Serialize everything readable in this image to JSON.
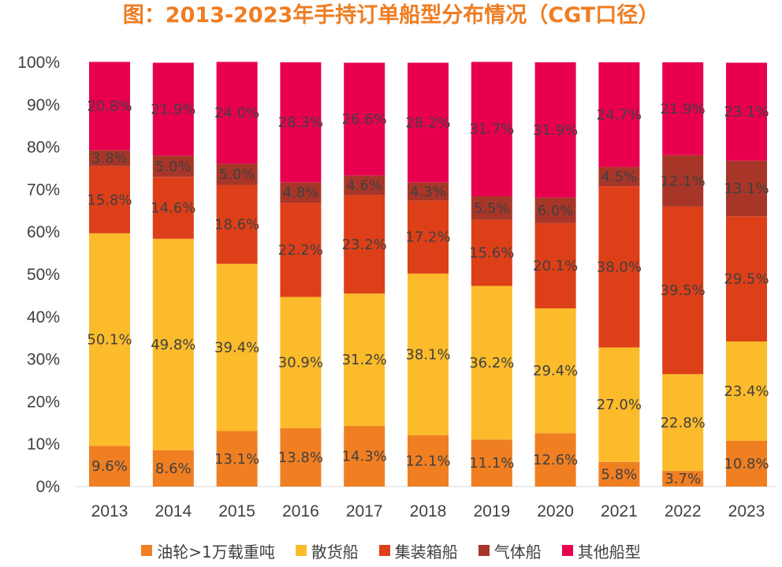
{
  "chart_data": {
    "type": "bar",
    "stacked": true,
    "title": "图：2013-2023年手持订单船型分布情况（CGT口径）",
    "categories": [
      "2013",
      "2014",
      "2015",
      "2016",
      "2017",
      "2018",
      "2019",
      "2020",
      "2021",
      "2022",
      "2023"
    ],
    "y_ticks": [
      "0%",
      "10%",
      "20%",
      "30%",
      "40%",
      "50%",
      "60%",
      "70%",
      "80%",
      "90%",
      "100%"
    ],
    "ylim": [
      0,
      100
    ],
    "grid": false,
    "legend_position": "bottom",
    "series": [
      {
        "name": "油轮>1万载重吨",
        "color": "#f07f22",
        "values": [
          9.6,
          8.6,
          13.1,
          13.8,
          14.3,
          12.1,
          11.1,
          12.6,
          5.8,
          3.7,
          10.8
        ],
        "labels": [
          "9.6%",
          "8.6%",
          "13.1%",
          "13.8%",
          "14.3%",
          "12.1%",
          "11.1%",
          "12.6%",
          "5.8%",
          "3.7%",
          "10.8%"
        ]
      },
      {
        "name": "散货船",
        "color": "#fbbb2b",
        "values": [
          50.1,
          49.8,
          39.4,
          30.9,
          31.2,
          38.1,
          36.2,
          29.4,
          27.0,
          22.8,
          23.4
        ],
        "labels": [
          "50.1%",
          "49.8%",
          "39.4%",
          "30.9%",
          "31.2%",
          "38.1%",
          "36.2%",
          "29.4%",
          "27.0%",
          "22.8%",
          "23.4%"
        ]
      },
      {
        "name": "集装箱船",
        "color": "#dd3f19",
        "values": [
          15.8,
          14.6,
          18.6,
          22.2,
          23.2,
          17.2,
          15.6,
          20.1,
          38.0,
          39.5,
          29.5
        ],
        "labels": [
          "15.8%",
          "14.6%",
          "18.6%",
          "22.2%",
          "23.2%",
          "17.2%",
          "15.6%",
          "20.1%",
          "38.0%",
          "39.5%",
          "29.5%"
        ]
      },
      {
        "name": "气体船",
        "color": "#a83628",
        "values": [
          3.8,
          5.0,
          5.0,
          4.8,
          4.6,
          4.3,
          5.5,
          6.0,
          4.5,
          12.1,
          13.1
        ],
        "labels": [
          "3.8%",
          "5.0%",
          "5.0%",
          "4.8%",
          "4.6%",
          "4.3%",
          "5.5%",
          "6.0%",
          "4.5%",
          "12.1%",
          "13.1%"
        ]
      },
      {
        "name": "其他船型",
        "color": "#e8004f",
        "values": [
          20.8,
          21.9,
          24.0,
          28.3,
          26.6,
          28.2,
          31.7,
          31.9,
          24.7,
          21.9,
          23.1
        ],
        "labels": [
          "20.8%",
          "21.9%",
          "24.0%",
          "28.3%",
          "26.6%",
          "28.2%",
          "31.7%",
          "31.9%",
          "24.7%",
          "21.9%",
          "23.1%"
        ]
      }
    ]
  }
}
